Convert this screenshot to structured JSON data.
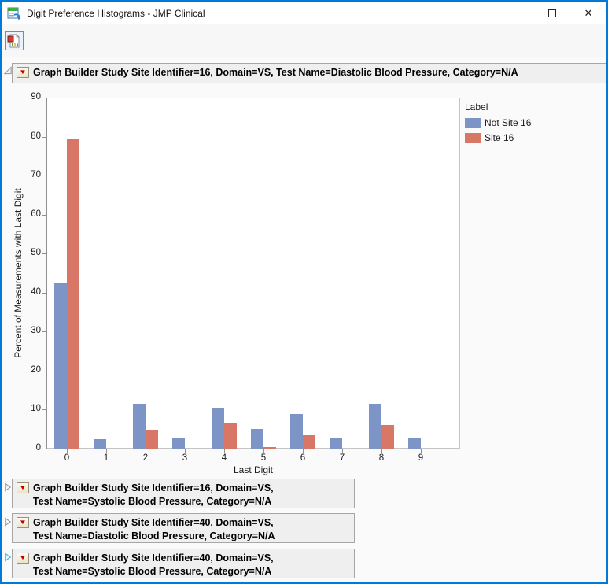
{
  "window": {
    "title": "Digit Preference Histograms - JMP Clinical"
  },
  "icons": {
    "close": "✕",
    "red_triangle": "▼"
  },
  "sections": [
    {
      "state": "expanded",
      "title": "Graph Builder Study Site Identifier=16, Domain=VS, Test Name=Diastolic Blood Pressure, Category=N/A"
    },
    {
      "state": "collapsed",
      "line1": "Graph Builder Study Site Identifier=16, Domain=VS,",
      "line2": "Test Name=Systolic Blood Pressure, Category=N/A"
    },
    {
      "state": "collapsed",
      "line1": "Graph Builder Study Site Identifier=40, Domain=VS,",
      "line2": "Test Name=Diastolic Blood Pressure, Category=N/A"
    },
    {
      "state": "collapsed",
      "line1": "Graph Builder Study Site Identifier=40, Domain=VS,",
      "line2": "Test Name=Systolic Blood Pressure, Category=N/A"
    }
  ],
  "chart_data": {
    "type": "bar",
    "categories": [
      "0",
      "1",
      "2",
      "3",
      "4",
      "5",
      "6",
      "7",
      "8",
      "9"
    ],
    "series": [
      {
        "name": "Not Site 16",
        "color": "#7d94c7",
        "values": [
          42.5,
          2.5,
          11.5,
          2.8,
          10.5,
          5.0,
          8.8,
          2.8,
          11.6,
          2.8
        ]
      },
      {
        "name": "Site 16",
        "color": "#d97766",
        "values": [
          79.5,
          0,
          4.8,
          0,
          6.5,
          0.4,
          3.4,
          0,
          6.0,
          0
        ]
      }
    ],
    "xlabel": "Last Digit",
    "ylabel": "Percent of Measurements with Last Digit",
    "ylim": [
      0,
      90
    ],
    "ytick_step": 10,
    "legend_title": "Label",
    "legend_position": "right",
    "grid": false
  }
}
